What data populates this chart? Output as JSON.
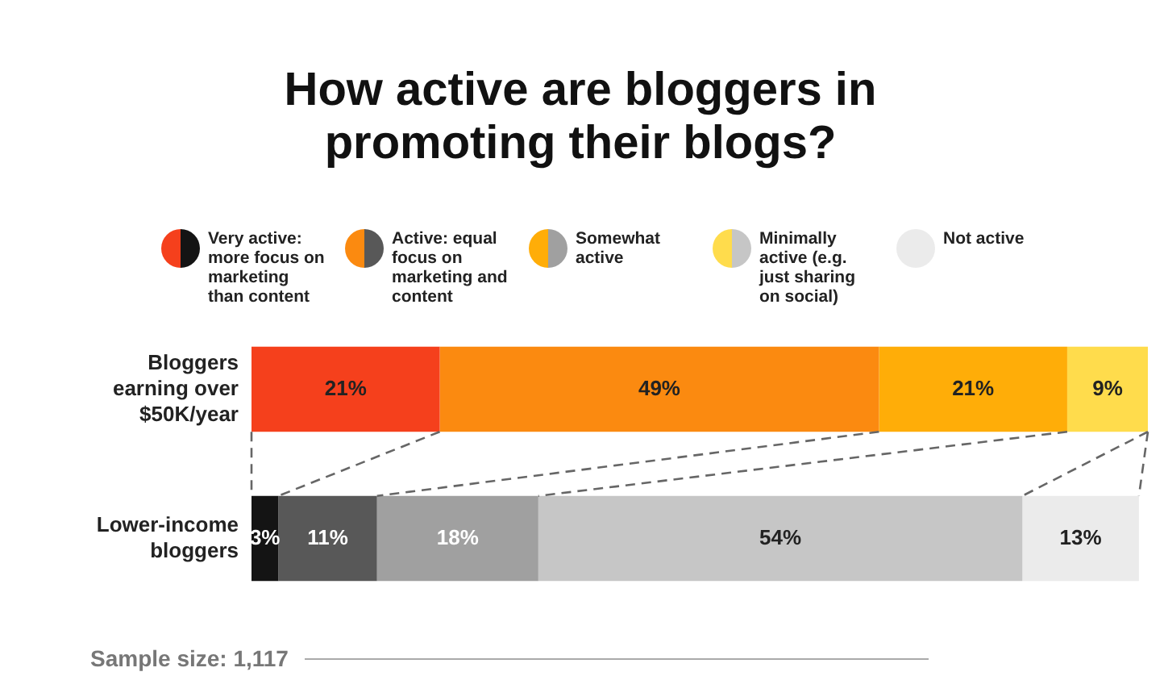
{
  "chart_data": {
    "type": "bar",
    "orientation": "horizontal",
    "stacked": true,
    "tick_labels": false,
    "title": "How active are bloggers in promoting their blogs?",
    "categories": [
      "Bloggers earning over $50K/year",
      "Lower-income bloggers"
    ],
    "series": [
      {
        "name": "Very active: more focus on marketing than content",
        "colors": [
          "#f5401c",
          "#141414"
        ],
        "values": [
          21,
          3
        ],
        "value_labels": [
          "21%",
          "3%"
        ]
      },
      {
        "name": "Active: equal focus on marketing and content",
        "colors": [
          "#fb8a10",
          "#585858"
        ],
        "values": [
          49,
          11
        ],
        "value_labels": [
          "49%",
          "11%"
        ]
      },
      {
        "name": "Somewhat active",
        "colors": [
          "#ffad08",
          "#a0a0a0"
        ],
        "values": [
          21,
          18
        ],
        "value_labels": [
          "21%",
          "18%"
        ]
      },
      {
        "name": "Minimally active (e.g. just sharing on social)",
        "colors": [
          "#ffdc4c",
          "#c6c6c6"
        ],
        "values": [
          9,
          54
        ],
        "value_labels": [
          "9%",
          "54%"
        ]
      },
      {
        "name": "Not active",
        "colors": [
          "#ebebeb",
          "#ebebeb"
        ],
        "values": [
          0,
          13
        ],
        "value_labels": [
          null,
          "13%"
        ]
      }
    ],
    "legend": "top",
    "annotations": [
      "Sample size: 1,117"
    ]
  }
}
